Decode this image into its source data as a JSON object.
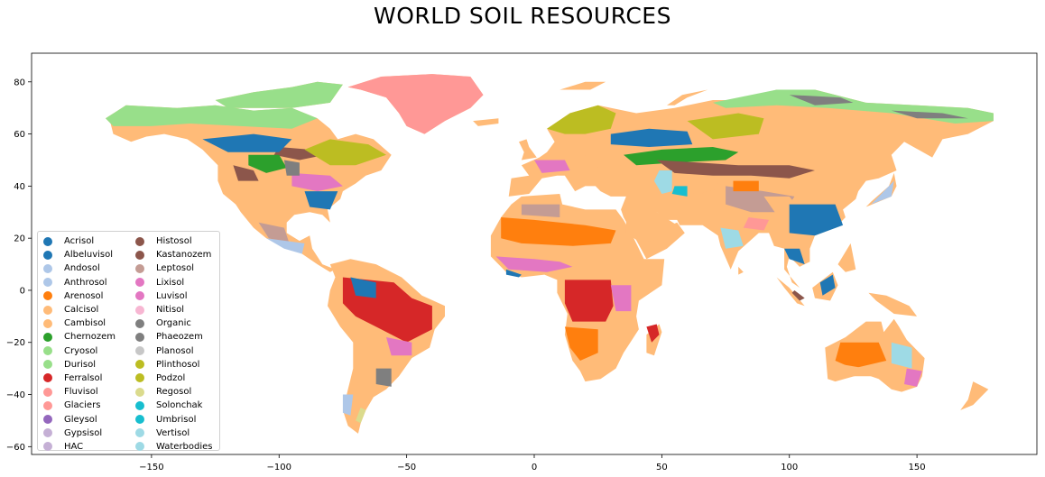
{
  "title": "WORLD SOIL RESOURCES",
  "map": {
    "extent": {
      "lon": [
        -197,
        197
      ],
      "lat": [
        -63,
        91
      ]
    },
    "ocean_color": "#ffffff",
    "land_default_color": "#ffbb78",
    "x_ticks": [
      -150,
      -100,
      -50,
      0,
      50,
      100,
      150
    ],
    "y_ticks": [
      80,
      60,
      40,
      20,
      0,
      -20,
      -40,
      -60
    ],
    "x_tick_labels": [
      "−150",
      "−100",
      "−50",
      "0",
      "50",
      "100",
      "150"
    ],
    "y_tick_labels": [
      "80",
      "60",
      "40",
      "20",
      "0",
      "−20",
      "−40",
      "−60"
    ]
  },
  "legend": {
    "location": "lower left",
    "columns": 2,
    "items": [
      {
        "label": "Acrisol",
        "color": "#1f77b4"
      },
      {
        "label": "Albeluvisol",
        "color": "#1f77b4"
      },
      {
        "label": "Andosol",
        "color": "#aec7e8"
      },
      {
        "label": "Anthrosol",
        "color": "#aec7e8"
      },
      {
        "label": "Arenosol",
        "color": "#ff7f0e"
      },
      {
        "label": "Calcisol",
        "color": "#ffbb78"
      },
      {
        "label": "Cambisol",
        "color": "#ffbb78"
      },
      {
        "label": "Chernozem",
        "color": "#2ca02c"
      },
      {
        "label": "Cryosol",
        "color": "#98df8a"
      },
      {
        "label": "Durisol",
        "color": "#98df8a"
      },
      {
        "label": "Ferralsol",
        "color": "#d62728"
      },
      {
        "label": "Fluvisol",
        "color": "#ff9896"
      },
      {
        "label": "Glaciers",
        "color": "#ff9896"
      },
      {
        "label": "Gleysol",
        "color": "#9467bd"
      },
      {
        "label": "Gypsisol",
        "color": "#c5b0d5"
      },
      {
        "label": "HAC",
        "color": "#c5b0d5"
      },
      {
        "label": "Histosol",
        "color": "#8c564b"
      },
      {
        "label": "Kastanozem",
        "color": "#8c564b"
      },
      {
        "label": "Leptosol",
        "color": "#c49c94"
      },
      {
        "label": "Lixisol",
        "color": "#e377c2"
      },
      {
        "label": "Luvisol",
        "color": "#e377c2"
      },
      {
        "label": "Nitisol",
        "color": "#f7b6d2"
      },
      {
        "label": "Organic",
        "color": "#7f7f7f"
      },
      {
        "label": "Phaeozem",
        "color": "#7f7f7f"
      },
      {
        "label": "Planosol",
        "color": "#c7c7c7"
      },
      {
        "label": "Plinthosol",
        "color": "#bcbd22"
      },
      {
        "label": "Podzol",
        "color": "#bcbd22"
      },
      {
        "label": "Regosol",
        "color": "#dbdb8d"
      },
      {
        "label": "Solonchak",
        "color": "#17becf"
      },
      {
        "label": "Umbrisol",
        "color": "#17becf"
      },
      {
        "label": "Vertisol",
        "color": "#9edae5"
      },
      {
        "label": "Waterbodies",
        "color": "#9edae5"
      }
    ]
  }
}
